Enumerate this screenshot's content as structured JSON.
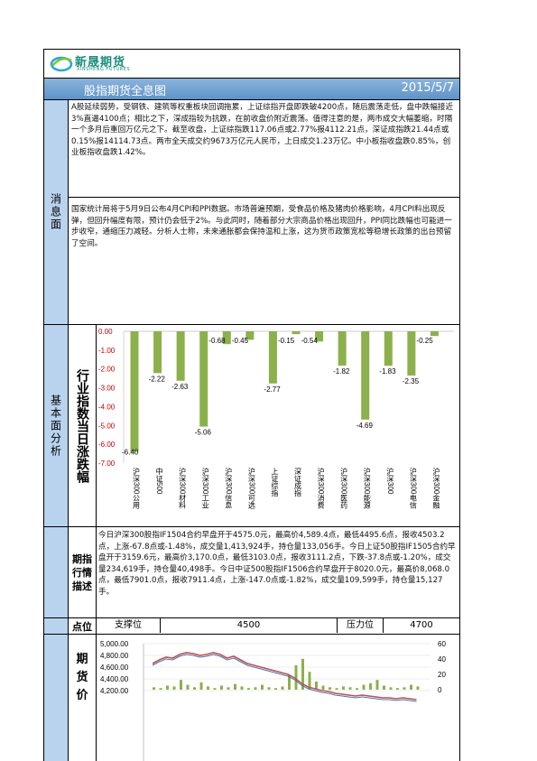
{
  "logo": {
    "name_cn": "新晟期货",
    "name_en": "XINSHENG FUTURES"
  },
  "header": {
    "title": "股指期货全息图",
    "date": "2015/5/7"
  },
  "news": {
    "label": "消息面",
    "para1": "A股延续弱势，受钢铁、建筑等权重板块回调拖累，上证综指开盘即跌破4200点，随后震荡走低，盘中跌幅接近3%直逼4100点；相比之下，深成指较为抗跌，在前收盘价附近震荡。值得注意的是，两市成交大幅萎缩，时隔一个多月后重回万亿元之下。截至收盘，上证综指跌117.06点或2.77%报4112.21点，深证成指跌21.44点或0.15%报14114.73点。两市全天成交约9673万亿元人民币，上日成交1.23万亿。中小板指收盘跌0.85%，创业板指收盘跌1.42%。",
    "para2": "国家统计局将于5月9日公布4月CPI和PPI数据。市场普遍预期，受食品价格及猪肉价格影响，4月CPI料出现反弹，但回升幅度有限，预计仍会低于2%。与此同时，随着部分大宗商品价格出现回升，PPI同比跌幅也可能进一步收窄，通缩压力减轻。分析人士称，未来通胀都会保持温和上涨，这为货币政策宽松等稳增长政策的出台预留了空间。"
  },
  "fundamentals": {
    "label": "基本面分析",
    "chart_label": "行业指数当日涨跌幅"
  },
  "chart_data": {
    "type": "bar",
    "categories": [
      "沪深300公用",
      "中证500",
      "沪深300材料",
      "沪深300工业",
      "沪深300信息",
      "沪深300可选",
      "上证综指",
      "深证成指",
      "沪深300消费",
      "沪深300医药",
      "沪深300能源",
      "沪深300",
      "沪深300电信",
      "沪深300金融"
    ],
    "values": [
      -6.4,
      -2.22,
      -2.63,
      -5.06,
      -0.68,
      -0.45,
      -2.77,
      -0.15,
      -0.54,
      -1.82,
      -4.69,
      -1.83,
      -2.35,
      -0.25
    ],
    "value_labels": [
      "-6.40",
      "-2.22",
      "-2.63",
      "-5.06",
      "-0.68",
      "-0.45",
      "-2.77",
      "-0.15",
      "-0.54",
      "-1.82",
      "-4.69",
      "-1.83",
      "-2.35",
      "-0.25"
    ],
    "yticks": [
      "0.00",
      "-1.00",
      "-2.00",
      "-3.00",
      "-4.00",
      "-5.00",
      "-6.00",
      "-7.00"
    ],
    "ylim": [
      -7,
      0
    ],
    "color": "#8cb04c"
  },
  "market": {
    "label": "期指行情描述",
    "text": "今日沪深300股指IF1504合约早盘开于4575.0元，最高价4,589.4点，最低4495.6点，报收4503.2点，上涨-67.8点或-1.48%，成交量1,413,924手，持仓量133,056手。今日上证50股指IF1505合约早盘开于3159.6元，最高价3,170.0点，最低3103.0点，报收3111.2点，下跌-37.8点或-1.20%，成交量234,619手，持仓量40,498手。今日中证500股指IF1506合约早盘开于8020.0元，最高价8,068.0点，最低7901.0点，报收7911.4点，上涨-147.0点或-1.82%，成交量109,599手，持仓量15,127手。"
  },
  "levels": {
    "label": "点位",
    "support_label": "支撑位",
    "support_value": "4500",
    "resist_label": "压力位",
    "resist_value": "4700"
  },
  "futures": {
    "label": "期货价",
    "left_ticks": [
      "5,000.00",
      "4,800.00",
      "4,600.00",
      "4,400.00",
      "4,200.00"
    ],
    "right_ticks": [
      "60",
      "40",
      "20",
      "0"
    ]
  }
}
